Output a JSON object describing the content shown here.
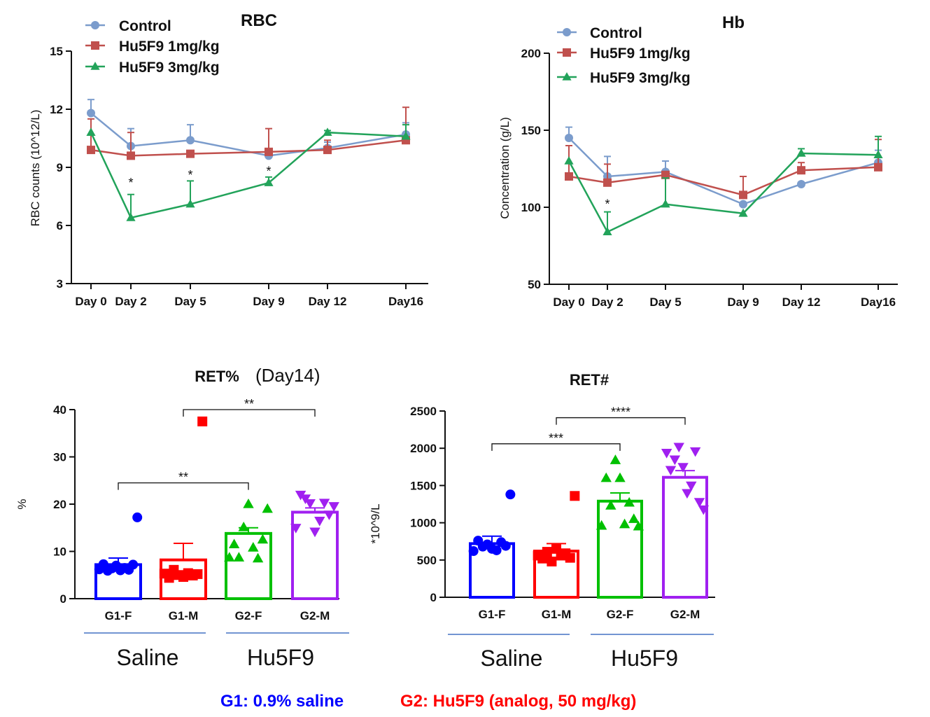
{
  "colors": {
    "control": "#7b9ccc",
    "hu1": "#c0504d",
    "hu3": "#22a35a",
    "g1f": "#0000ff",
    "g1m": "#ff0000",
    "g2f": "#00c000",
    "g2m": "#a020f0",
    "axis": "#111111",
    "group_rule": "#4472c4",
    "foot_g1": "#0000ff",
    "foot_g2": "#ff0000"
  },
  "chart_data": [
    {
      "id": "rbc",
      "type": "line",
      "title": "RBC",
      "ylabel": "RBC counts (10^12/L)",
      "xlabel": "",
      "ylim": [
        3,
        15
      ],
      "yticks": [
        "3",
        "6",
        "9",
        "12",
        "15"
      ],
      "x_days": [
        0,
        2,
        5,
        9,
        12,
        16
      ],
      "x_labels": [
        "Day 0",
        "Day 2",
        "Day 5",
        "Day 9",
        "Day 12",
        "Day16"
      ],
      "legend": [
        "Control",
        "Hu5F9 1mg/kg",
        "Hu5F9 3mg/kg"
      ],
      "legend_position": "top-left",
      "series": [
        {
          "name": "Control",
          "marker": "circle",
          "color": "control",
          "values": [
            11.8,
            10.1,
            10.4,
            9.6,
            10.0,
            10.7
          ],
          "err": [
            0.7,
            0.9,
            0.8,
            0.0,
            0.3,
            0.6
          ]
        },
        {
          "name": "Hu5F9 1mg/kg",
          "marker": "square",
          "color": "hu1",
          "values": [
            9.9,
            9.6,
            9.7,
            9.8,
            9.9,
            10.4
          ],
          "err": [
            1.6,
            1.2,
            0.0,
            1.2,
            0.5,
            1.7
          ]
        },
        {
          "name": "Hu5F9 3mg/kg",
          "marker": "triangle",
          "color": "hu3",
          "values": [
            10.8,
            6.4,
            7.1,
            8.2,
            10.8,
            10.6
          ],
          "err": [
            0.0,
            1.2,
            1.2,
            0.3,
            0.1,
            0.6
          ]
        }
      ],
      "annotations": [
        {
          "text": "*",
          "x": 2,
          "y": 8.2
        },
        {
          "text": "*",
          "x": 5,
          "y": 8.6
        },
        {
          "text": "*",
          "x": 9,
          "y": 8.8
        }
      ]
    },
    {
      "id": "hb",
      "type": "line",
      "title": "Hb",
      "ylabel": "Concentration (g/L)",
      "xlabel": "",
      "ylim": [
        50,
        200
      ],
      "yticks": [
        "50",
        "100",
        "150",
        "200"
      ],
      "x_days": [
        0,
        2,
        5,
        9,
        12,
        16
      ],
      "x_labels": [
        "Day 0",
        "Day 2",
        "Day 5",
        "Day 9",
        "Day 12",
        "Day16"
      ],
      "legend": [
        "Control",
        "Hu5F9 1mg/kg",
        "Hu5F9 3mg/kg"
      ],
      "legend_position": "top-left",
      "series": [
        {
          "name": "Control",
          "marker": "circle",
          "color": "control",
          "values": [
            145,
            120,
            123,
            102,
            115,
            129
          ],
          "err": [
            7,
            13,
            7,
            0,
            0,
            8
          ]
        },
        {
          "name": "Hu5F9 1mg/kg",
          "marker": "square",
          "color": "hu1",
          "values": [
            120,
            116,
            121,
            108,
            124,
            126
          ],
          "err": [
            20,
            12,
            0,
            12,
            5,
            18
          ]
        },
        {
          "name": "Hu5F9 3mg/kg",
          "marker": "triangle",
          "color": "hu3",
          "values": [
            130,
            84,
            102,
            96,
            135,
            134
          ],
          "err": [
            0,
            13,
            17,
            0,
            3,
            12
          ]
        }
      ],
      "annotations": [
        {
          "text": "*",
          "x": 2,
          "y": 102
        }
      ]
    },
    {
      "id": "retpct",
      "type": "bar",
      "title": "RET%",
      "subtitle": "(Day14)",
      "ylabel": "%",
      "xlabel": "",
      "ylim": [
        0,
        40
      ],
      "yticks": [
        "0",
        "10",
        "20",
        "30",
        "40"
      ],
      "categories": [
        "G1-F",
        "G1-M",
        "G2-F",
        "G2-M"
      ],
      "colors": [
        "g1f",
        "g1m",
        "g2f",
        "g2m"
      ],
      "markers": [
        "circle",
        "square",
        "triangle",
        "triangle-down"
      ],
      "values": [
        7.2,
        8.2,
        13.8,
        18.3
      ],
      "err": [
        1.4,
        3.5,
        1.2,
        0.9
      ],
      "points": [
        [
          6.2,
          7.3,
          5.9,
          6.4,
          7.0,
          6.0,
          6.5,
          6.1,
          7.2,
          17.2
        ],
        [
          5.3,
          4.4,
          6.1,
          5.0,
          4.6,
          5.4,
          4.9,
          5.2,
          37.5
        ],
        [
          8.7,
          11.5,
          8.7,
          15.1,
          20.0,
          10.8,
          8.5,
          12.5,
          19.0
        ],
        [
          15.0,
          22.0,
          21.2,
          20.2,
          14.2,
          16.5,
          20.3,
          17.8,
          19.6
        ]
      ],
      "comparisons": [
        {
          "from": 0,
          "to": 2,
          "y": 24.5,
          "text": "**"
        },
        {
          "from": 1,
          "to": 3,
          "y": 40.0,
          "text": "**"
        }
      ],
      "group_labels": [
        "Saline",
        "Hu5F9"
      ]
    },
    {
      "id": "retnum",
      "type": "bar",
      "title": "RET#",
      "ylabel": "*10^9/L",
      "xlabel": "",
      "ylim": [
        0,
        2500
      ],
      "yticks": [
        "0",
        "500",
        "1000",
        "1500",
        "2000",
        "2500"
      ],
      "categories": [
        "G1-F",
        "G1-M",
        "G2-F",
        "G2-M"
      ],
      "colors": [
        "g1f",
        "g1m",
        "g2f",
        "g2m"
      ],
      "markers": [
        "circle",
        "square",
        "triangle",
        "triangle-down"
      ],
      "values": [
        720,
        620,
        1290,
        1610
      ],
      "err": [
        100,
        100,
        110,
        90
      ],
      "points": [
        [
          620,
          760,
          680,
          710,
          650,
          630,
          740,
          690,
          1380
        ],
        [
          560,
          520,
          610,
          480,
          650,
          560,
          590,
          530,
          1360
        ],
        [
          960,
          1600,
          1230,
          1840,
          1600,
          980,
          1270,
          1050,
          950
        ],
        [
          1940,
          1710,
          1850,
          2020,
          1750,
          1400,
          1500,
          1960,
          1280,
          1180
        ]
      ],
      "comparisons": [
        {
          "from": 0,
          "to": 2,
          "y": 2060,
          "text": "***"
        },
        {
          "from": 1,
          "to": 3,
          "y": 2410,
          "text": "****"
        }
      ],
      "group_labels": [
        "Saline",
        "Hu5F9"
      ]
    }
  ],
  "footnotes": {
    "g1": "G1: 0.9% saline",
    "g2": "G2: Hu5F9 (analog, 50 mg/kg)"
  }
}
